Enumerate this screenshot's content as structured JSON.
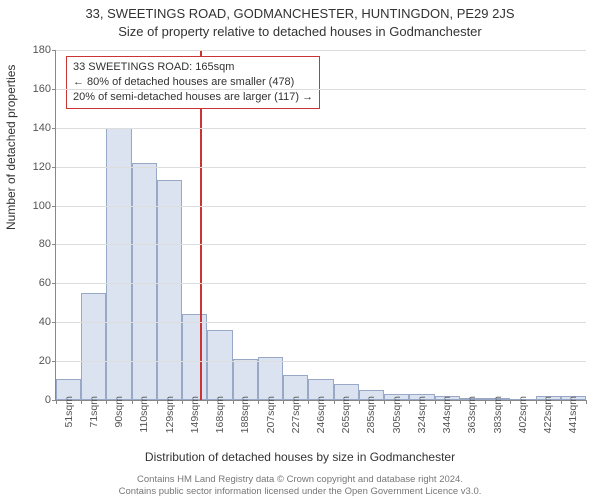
{
  "title_line1": "33, SWEETINGS ROAD, GODMANCHESTER, HUNTINGDON, PE29 2JS",
  "title_line2": "Size of property relative to detached houses in Godmanchester",
  "y_axis_label": "Number of detached properties",
  "x_axis_label": "Distribution of detached houses by size in Godmanchester",
  "footer_line1": "Contains HM Land Registry data © Crown copyright and database right 2024.",
  "footer_line2": "Contains public sector information licensed under the Open Government Licence v3.0.",
  "chart": {
    "type": "histogram",
    "ylim": [
      0,
      180
    ],
    "ytick_step": 20,
    "x_start": 51,
    "x_bin_width": 20,
    "xtick_labels": [
      "51sqm",
      "71sqm",
      "90sqm",
      "110sqm",
      "129sqm",
      "149sqm",
      "168sqm",
      "188sqm",
      "207sqm",
      "227sqm",
      "246sqm",
      "265sqm",
      "285sqm",
      "305sqm",
      "324sqm",
      "344sqm",
      "363sqm",
      "383sqm",
      "402sqm",
      "422sqm",
      "441sqm"
    ],
    "values": [
      11,
      55,
      140,
      122,
      113,
      44,
      36,
      21,
      22,
      13,
      11,
      8,
      5,
      3,
      3,
      2,
      1,
      1,
      0,
      2,
      2
    ],
    "bar_fill": "#dbe3f1",
    "bar_stroke": "#9aa8c8",
    "grid_color": "#dddddd",
    "axis_color": "#888888",
    "background": "#ffffff",
    "title_fontsize": 13,
    "label_fontsize": 12,
    "tick_fontsize": 11
  },
  "reference_line": {
    "value_sqm": 165,
    "color": "#cc3333"
  },
  "annotation": {
    "line1": "33 SWEETINGS ROAD: 165sqm",
    "line2": "← 80% of detached houses are smaller (478)",
    "line3": "20% of semi-detached houses are larger (117) →",
    "border_color": "#cc3333",
    "background": "#ffffff",
    "fontsize": 11
  }
}
